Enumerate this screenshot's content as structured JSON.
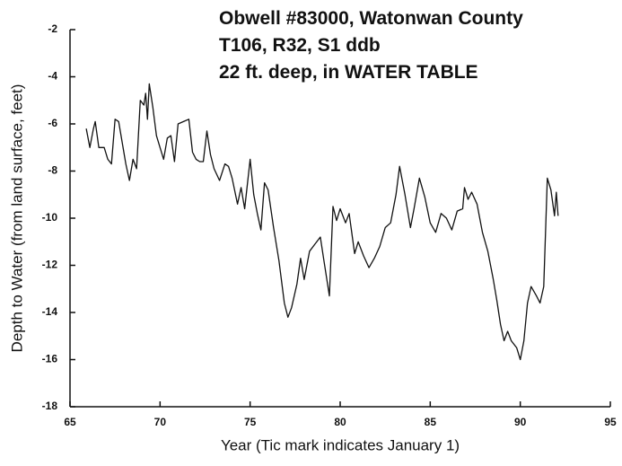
{
  "chart_data": {
    "type": "line",
    "title": [
      "Obwell #83000, Watonwan County",
      "T106, R32, S1 ddb",
      "22 ft. deep, in WATER TABLE"
    ],
    "xlabel": "Year (Tic mark indicates January 1)",
    "ylabel": "Depth to Water (from land surface, feet)",
    "xlim": [
      65,
      95
    ],
    "xticks": [
      65,
      70,
      75,
      80,
      85,
      90,
      95
    ],
    "ylim": [
      -18,
      -2
    ],
    "yticks": [
      -18,
      -16,
      -14,
      -12,
      -10,
      -8,
      -6,
      -4,
      -2
    ],
    "grid": false,
    "series": [
      {
        "color": "#111111",
        "x": [
          65.9,
          66.1,
          66.3,
          66.4,
          66.6,
          66.9,
          67.1,
          67.3,
          67.5,
          67.7,
          67.9,
          68.1,
          68.3,
          68.5,
          68.7,
          68.9,
          69.1,
          69.2,
          69.3,
          69.4,
          69.6,
          69.8,
          70.0,
          70.2,
          70.4,
          70.6,
          70.8,
          71.0,
          71.3,
          71.6,
          71.8,
          72.0,
          72.2,
          72.4,
          72.6,
          72.8,
          73.0,
          73.3,
          73.6,
          73.8,
          74.0,
          74.3,
          74.5,
          74.7,
          75.0,
          75.2,
          75.4,
          75.6,
          75.8,
          76.0,
          76.3,
          76.6,
          76.9,
          77.1,
          77.3,
          77.6,
          77.8,
          78.0,
          78.3,
          78.6,
          78.9,
          79.1,
          79.4,
          79.6,
          79.8,
          80.0,
          80.3,
          80.5,
          80.8,
          81.0,
          81.3,
          81.6,
          81.9,
          82.2,
          82.5,
          82.8,
          83.1,
          83.3,
          83.6,
          83.9,
          84.1,
          84.4,
          84.7,
          85.0,
          85.3,
          85.6,
          85.9,
          86.2,
          86.5,
          86.8,
          86.9,
          87.1,
          87.3,
          87.6,
          87.9,
          88.2,
          88.5,
          88.7,
          88.9,
          89.1,
          89.3,
          89.5,
          89.8,
          90.0,
          90.2,
          90.4,
          90.6,
          90.9,
          91.1,
          91.3,
          91.5,
          91.7,
          91.9,
          92.0,
          92.1
        ],
        "values": [
          -6.2,
          -7.0,
          -6.2,
          -5.9,
          -7.0,
          -7.0,
          -7.5,
          -7.7,
          -5.8,
          -5.9,
          -6.8,
          -7.7,
          -8.4,
          -7.5,
          -7.9,
          -5.0,
          -5.2,
          -4.7,
          -5.8,
          -4.3,
          -5.3,
          -6.5,
          -7.0,
          -7.5,
          -6.6,
          -6.5,
          -7.6,
          -6.0,
          -5.9,
          -5.8,
          -7.2,
          -7.5,
          -7.6,
          -7.6,
          -6.3,
          -7.3,
          -7.9,
          -8.4,
          -7.7,
          -7.8,
          -8.3,
          -9.4,
          -8.7,
          -9.6,
          -7.5,
          -9.0,
          -9.8,
          -10.5,
          -8.5,
          -8.8,
          -10.4,
          -11.8,
          -13.6,
          -14.2,
          -13.8,
          -12.8,
          -11.7,
          -12.6,
          -11.4,
          -11.1,
          -10.8,
          -11.8,
          -13.3,
          -9.5,
          -10.1,
          -9.6,
          -10.2,
          -9.8,
          -11.5,
          -11.0,
          -11.6,
          -12.1,
          -11.7,
          -11.2,
          -10.4,
          -10.2,
          -9.0,
          -7.8,
          -9.0,
          -10.4,
          -9.6,
          -8.3,
          -9.1,
          -10.2,
          -10.6,
          -9.8,
          -10.0,
          -10.5,
          -9.7,
          -9.6,
          -8.7,
          -9.2,
          -8.9,
          -9.4,
          -10.6,
          -11.4,
          -12.6,
          -13.5,
          -14.5,
          -15.2,
          -14.8,
          -15.2,
          -15.5,
          -16.0,
          -15.2,
          -13.6,
          -12.9,
          -13.3,
          -13.6,
          -12.9,
          -8.3,
          -8.8,
          -9.9,
          -8.9,
          -9.9
        ]
      }
    ]
  }
}
